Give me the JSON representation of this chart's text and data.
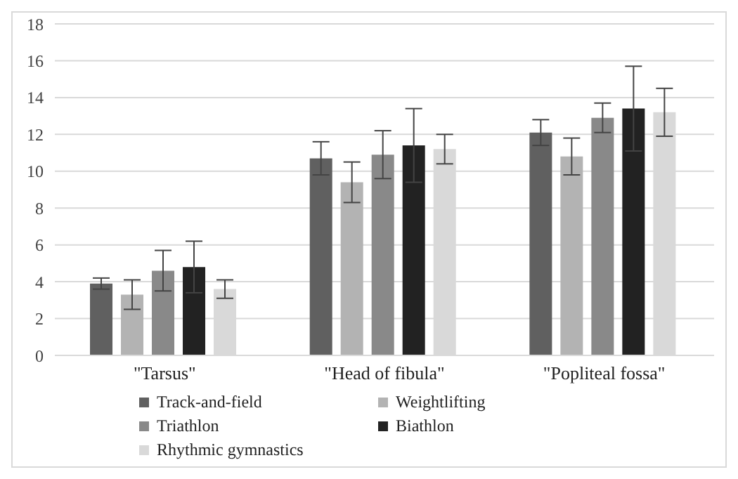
{
  "chart_data": {
    "type": "bar",
    "categories": [
      "\"Tarsus\"",
      "\"Head of fibula\"",
      "\"Popliteal fossa\""
    ],
    "series": [
      {
        "name": "Track-and-field",
        "color": "#606060",
        "values": [
          3.9,
          10.7,
          12.1
        ],
        "errors": [
          0.3,
          0.9,
          0.7
        ]
      },
      {
        "name": "Weightlifting",
        "color": "#b3b3b3",
        "values": [
          3.3,
          9.4,
          10.8
        ],
        "errors": [
          0.8,
          1.1,
          1.0
        ]
      },
      {
        "name": "Triathlon",
        "color": "#898989",
        "values": [
          4.6,
          10.9,
          12.9
        ],
        "errors": [
          1.1,
          1.3,
          0.8
        ]
      },
      {
        "name": "Biathlon",
        "color": "#222222",
        "values": [
          4.8,
          11.4,
          13.4
        ],
        "errors": [
          1.4,
          2.0,
          2.3
        ]
      },
      {
        "name": "Rhythmic gymnastics",
        "color": "#d9d9d9",
        "values": [
          3.6,
          11.2,
          13.2
        ],
        "errors": [
          0.5,
          0.8,
          1.3
        ]
      }
    ],
    "ylim": [
      0,
      18
    ],
    "yticks": [
      0,
      2,
      4,
      6,
      8,
      10,
      12,
      14,
      16,
      18
    ],
    "grid": "y",
    "legend": "bottom"
  }
}
